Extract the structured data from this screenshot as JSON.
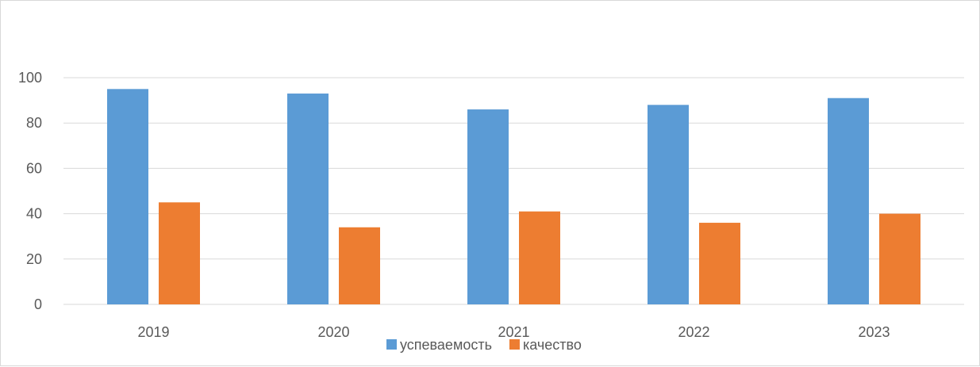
{
  "chart_data": {
    "type": "bar",
    "categories": [
      "2019",
      "2020",
      "2021",
      "2022",
      "2023"
    ],
    "series": [
      {
        "name": "успеваемость",
        "color": "#5b9bd5",
        "values": [
          95,
          93,
          86,
          88,
          91
        ]
      },
      {
        "name": "качество",
        "color": "#ed7d31",
        "values": [
          45,
          34,
          41,
          36,
          40
        ]
      }
    ],
    "ylim": [
      0,
      100
    ],
    "yticks": [
      "0",
      "20",
      "40",
      "60",
      "80",
      "100"
    ],
    "grid": true,
    "legend_position": "bottom"
  }
}
